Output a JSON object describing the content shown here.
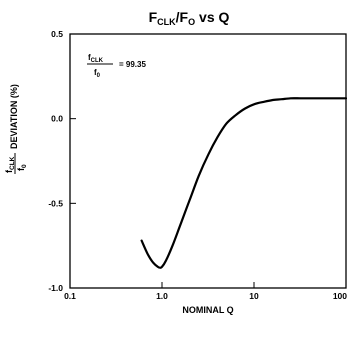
{
  "chart_data": {
    "type": "line",
    "title": {
      "main": "F",
      "main_sub": "CLK",
      "slash": "/F",
      "slash_sub": "O",
      "tail": " vs Q"
    },
    "xlabel": "NOMINAL Q",
    "ylabel": {
      "frac_num": "f",
      "frac_num_sub": "CLK",
      "frac_den": "f",
      "frac_den_sub": "0",
      "text": "DEVIATION (%)"
    },
    "x_scale": "log",
    "xlim": [
      0.1,
      100
    ],
    "ylim": [
      -1.0,
      0.5
    ],
    "x_ticks": [
      {
        "value": 0.1,
        "label": "0.1"
      },
      {
        "value": 1,
        "label": "1.0"
      },
      {
        "value": 10,
        "label": "10"
      },
      {
        "value": 100,
        "label": "100"
      }
    ],
    "y_ticks": [
      {
        "value": 0.5,
        "label": "0.5"
      },
      {
        "value": 0.0,
        "label": "0.0"
      },
      {
        "value": -0.5,
        "label": "-0.5"
      },
      {
        "value": -1.0,
        "label": "-1.0"
      }
    ],
    "annotation": {
      "num": "f",
      "num_sub": "CLK",
      "den": "f",
      "den_sub": "0",
      "value": "= 99.35"
    },
    "grid": false,
    "series": [
      {
        "x": [
          0.6,
          0.7,
          0.8,
          0.9,
          0.95,
          1.0,
          1.1,
          1.3,
          1.6,
          2.0,
          2.5,
          3.2,
          4.0,
          5.0,
          6.3,
          8.0,
          10,
          13,
          16,
          20,
          25,
          32,
          40,
          50,
          63,
          80,
          100
        ],
        "y": [
          -0.72,
          -0.8,
          -0.85,
          -0.875,
          -0.88,
          -0.875,
          -0.84,
          -0.75,
          -0.62,
          -0.48,
          -0.34,
          -0.21,
          -0.11,
          -0.03,
          0.02,
          0.06,
          0.085,
          0.1,
          0.11,
          0.115,
          0.12,
          0.12,
          0.12,
          0.12,
          0.12,
          0.12,
          0.12
        ]
      }
    ]
  }
}
